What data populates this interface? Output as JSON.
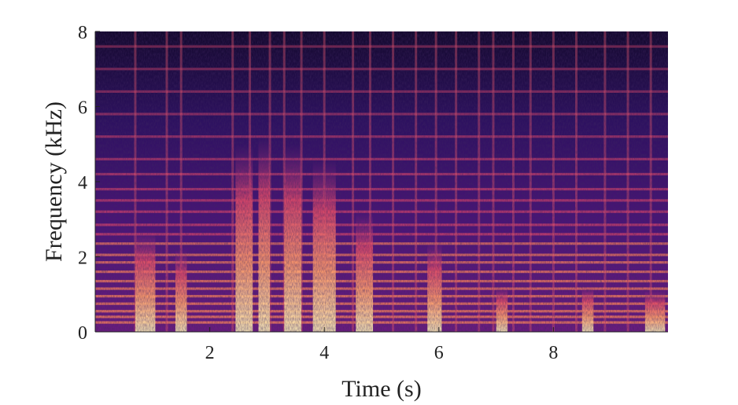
{
  "chart_data": {
    "type": "heatmap",
    "title": "",
    "xlabel": "Time (s)",
    "ylabel": "Frequency (kHz)",
    "xlim": [
      0,
      10
    ],
    "ylim": [
      0,
      8
    ],
    "xticks": [
      2,
      4,
      6,
      8
    ],
    "xtick_labels": [
      "2",
      "4",
      "6",
      "8"
    ],
    "yticks": [
      0,
      2,
      4,
      6,
      8
    ],
    "ytick_labels": [
      "0",
      "2",
      "4",
      "6",
      "8"
    ],
    "grid": false,
    "colormap": [
      "#000004",
      "#3b0f70",
      "#8c2981",
      "#de4968",
      "#fe9f6d",
      "#fcfdbf"
    ],
    "harmonic_bands_khz": [
      0.25,
      0.4,
      0.55,
      0.75,
      0.95,
      1.15,
      1.35,
      1.6,
      1.85,
      2.05,
      2.35,
      2.6,
      2.85,
      3.2,
      3.5,
      3.8,
      4.2,
      4.6,
      5.2,
      5.8,
      6.4,
      7.0,
      7.6
    ],
    "onsets_s": [
      0.7,
      1.25,
      1.5,
      2.4,
      2.7,
      3.05,
      3.3,
      3.6,
      4.0,
      4.5,
      4.8,
      5.2,
      5.6,
      5.95,
      6.3,
      6.7,
      6.95,
      7.3,
      7.6,
      8.0,
      8.4,
      8.9,
      9.3,
      9.7
    ],
    "bright_strokes": [
      {
        "t0": 0.7,
        "t1": 1.05,
        "f_top": 2.7
      },
      {
        "t0": 1.4,
        "t1": 1.6,
        "f_top": 2.2
      },
      {
        "t0": 2.45,
        "t1": 2.75,
        "f_top": 5.0
      },
      {
        "t0": 2.85,
        "t1": 3.05,
        "f_top": 5.2
      },
      {
        "t0": 3.3,
        "t1": 3.6,
        "f_top": 5.0
      },
      {
        "t0": 3.8,
        "t1": 4.2,
        "f_top": 4.6
      },
      {
        "t0": 4.55,
        "t1": 4.85,
        "f_top": 3.2
      },
      {
        "t0": 5.8,
        "t1": 6.05,
        "f_top": 2.4
      },
      {
        "t0": 7.0,
        "t1": 7.2,
        "f_top": 1.2
      },
      {
        "t0": 8.5,
        "t1": 8.7,
        "f_top": 1.2
      },
      {
        "t0": 9.6,
        "t1": 9.95,
        "f_top": 1.1
      }
    ]
  }
}
